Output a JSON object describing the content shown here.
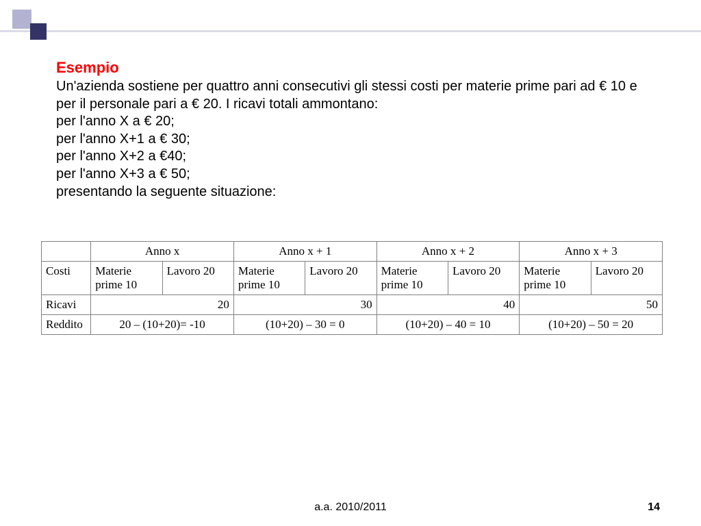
{
  "deco": {
    "sq1_color": "#b3b3d1",
    "sq2_color": "#333366",
    "line_color": "#dcdce8"
  },
  "heading": "Esempio",
  "paragraph_lines": [
    " Un'azienda sostiene per quattro anni consecutivi gli stessi costi  per materie prime pari ad € 10 e per il personale pari a € 20. I ricavi totali ammontano:",
    "per l'anno X a € 20;",
    "per l'anno X+1 a € 30;",
    "per l'anno X+2 a €40;",
    "per l'anno X+3 a € 50;",
    "presentando la seguente situazione:"
  ],
  "table": {
    "header_blank": "",
    "year_headers": [
      "Anno x",
      "Anno x + 1",
      "Anno x + 2",
      "Anno x + 3"
    ],
    "rows": {
      "costi": {
        "label": "Costi",
        "cells": [
          [
            "Materie prime 10",
            "Lavoro 20"
          ],
          [
            "Materie prime 10",
            "Lavoro 20"
          ],
          [
            "Materie prime 10",
            "Lavoro 20"
          ],
          [
            "Materie prime 10",
            "Lavoro 20"
          ]
        ]
      },
      "ricavi": {
        "label": "Ricavi",
        "values": [
          "20",
          "30",
          "40",
          "50"
        ]
      },
      "reddito": {
        "label": "Reddito",
        "values": [
          "20 – (10+20)= -10",
          "(10+20) – 30 = 0",
          "(10+20) – 40 = 10",
          "(10+20) – 50 = 20"
        ]
      }
    }
  },
  "footer": "a.a. 2010/2011",
  "page_number": "14",
  "colors": {
    "title": "#ff0000",
    "text": "#000000",
    "border": "#808080",
    "background": "#ffffff"
  },
  "fonts": {
    "body": "Arial",
    "table": "Times New Roman",
    "title_size": 22,
    "body_size": 20,
    "table_size": 17
  }
}
